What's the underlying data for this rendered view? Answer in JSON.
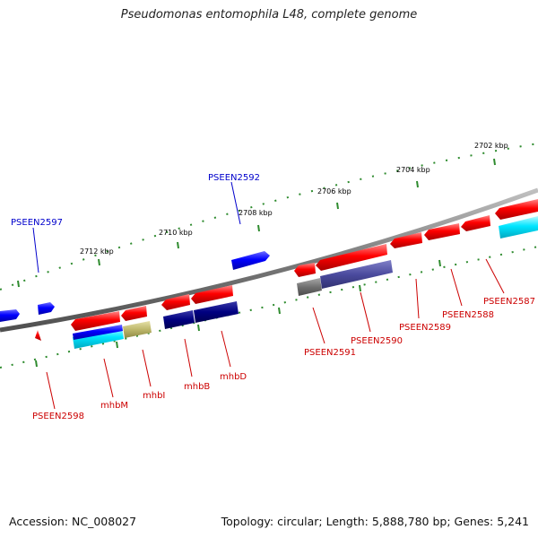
{
  "title": "Pseudomonas entomophila L48, complete genome",
  "footer": {
    "accession": "Accession: NC_008027",
    "info": "Topology: circular; Length: 5,888,780 bp; Genes: 5,241"
  },
  "colors": {
    "background": "#ffffff",
    "backbone": "#808080",
    "tick": "#2e8b2e",
    "forward_label": "#0000cc",
    "reverse_label": "#cc0000",
    "forward_gene": "#0000ff",
    "reverse_gene": "#ff0000",
    "cog_cyan": "#00e5ff",
    "cog_navy": "#000080",
    "cog_khaki": "#bdb76b",
    "cog_gray": "#707070",
    "cog_slate": "#4b4b9e"
  },
  "scale_labels": [
    "2712 kbp",
    "2710 kbp",
    "2708 kbp",
    "2706 kbp",
    "2704 kbp",
    "2702 kbp"
  ],
  "gene_labels": {
    "forward": [
      "PSEEN2597",
      "PSEEN2592"
    ],
    "reverse": [
      "PSEEN2598",
      "mhbM",
      "mhbI",
      "mhbB",
      "mhbD",
      "PSEEN2591",
      "PSEEN2590",
      "PSEEN2589",
      "PSEEN2588",
      "PSEEN2587"
    ]
  }
}
